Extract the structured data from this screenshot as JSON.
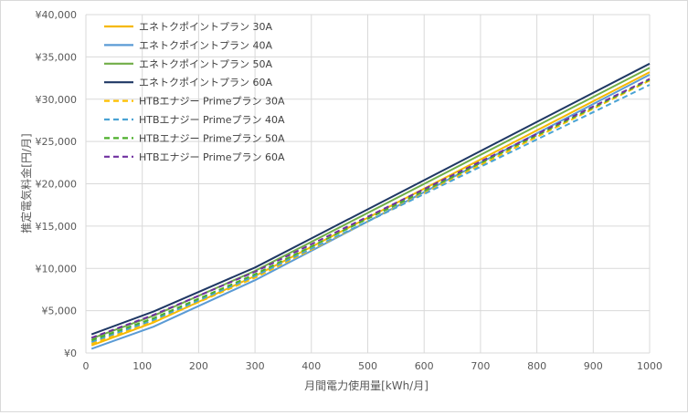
{
  "chart_data": {
    "type": "line",
    "title": "",
    "xlabel": "月間電力使用量[kWh/月]",
    "ylabel": "推定電気料金[円/月]",
    "xlim": [
      0,
      1000
    ],
    "ylim": [
      0,
      40000
    ],
    "x_ticks": [
      "0",
      "100",
      "200",
      "300",
      "400",
      "500",
      "600",
      "700",
      "800",
      "900",
      "1000"
    ],
    "y_ticks": [
      "¥0",
      "¥5,000",
      "¥10,000",
      "¥15,000",
      "¥20,000",
      "¥25,000",
      "¥30,000",
      "¥35,000",
      "¥40,000"
    ],
    "grid": true,
    "legend_position": "top-left",
    "x": [
      10,
      120,
      300,
      1000
    ],
    "series": [
      {
        "name": "エネトクポイントプラン 30A",
        "color": "#f5b800",
        "dash": false,
        "values": [
          900,
          3600,
          9100,
          33200
        ]
      },
      {
        "name": "エネトクポイントプラン 40A",
        "color": "#5b9bd5",
        "dash": false,
        "values": [
          500,
          3100,
          8600,
          32900
        ]
      },
      {
        "name": "エネトクポイントプラン 50A",
        "color": "#70ad47",
        "dash": false,
        "values": [
          1700,
          4400,
          9700,
          33700
        ]
      },
      {
        "name": "エネトクポイントプラン 60A",
        "color": "#1f3864",
        "dash": false,
        "values": [
          2200,
          4900,
          10100,
          34200
        ]
      },
      {
        "name": "HTBエナジー Primeプラン 30A",
        "color": "#ffc000",
        "dash": true,
        "values": [
          1100,
          3700,
          8900,
          32200
        ]
      },
      {
        "name": "HTBエナジー Primeプラン 40A",
        "color": "#4aa3d4",
        "dash": true,
        "values": [
          1300,
          3900,
          9100,
          31700
        ]
      },
      {
        "name": "HTBエナジー Primeプラン 50A",
        "color": "#4caf2a",
        "dash": true,
        "values": [
          1500,
          4100,
          9300,
          32300
        ]
      },
      {
        "name": "HTBエナジー Primeプラン 60A",
        "color": "#7030a0",
        "dash": true,
        "values": [
          1800,
          4500,
          9600,
          32400
        ]
      }
    ]
  }
}
